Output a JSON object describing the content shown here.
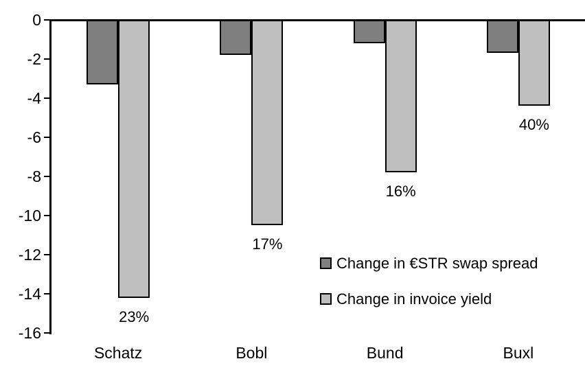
{
  "chart_data": {
    "type": "bar",
    "title": "",
    "xlabel": "",
    "ylabel": "",
    "categories": [
      "Schatz",
      "Bobl",
      "Bund",
      "Buxl"
    ],
    "series": [
      {
        "name": "Change in €STR swap spread",
        "color": "#7f7f7f",
        "values": [
          -3.3,
          -1.8,
          -1.2,
          -1.7
        ]
      },
      {
        "name": "Change in invoice yield",
        "color": "#bfbfbf",
        "values": [
          -14.2,
          -10.5,
          -7.8,
          -4.4
        ],
        "point_labels": [
          "23%",
          "17%",
          "16%",
          "40%"
        ]
      }
    ],
    "ylim": [
      -16,
      0
    ],
    "y_ticks": [
      "0",
      "-2",
      "-4",
      "-6",
      "-8",
      "-10",
      "-12",
      "-14",
      "-16"
    ],
    "grid": false,
    "legend_position": "inside-center-right",
    "axis_color": "#000000",
    "bar_border_color": "#000000",
    "background_color": "#ffffff"
  },
  "legend": {
    "items": [
      {
        "label": "Change in €STR swap spread",
        "swatch_color": "#7f7f7f"
      },
      {
        "label": "Change in invoice yield",
        "swatch_color": "#bfbfbf"
      }
    ]
  }
}
